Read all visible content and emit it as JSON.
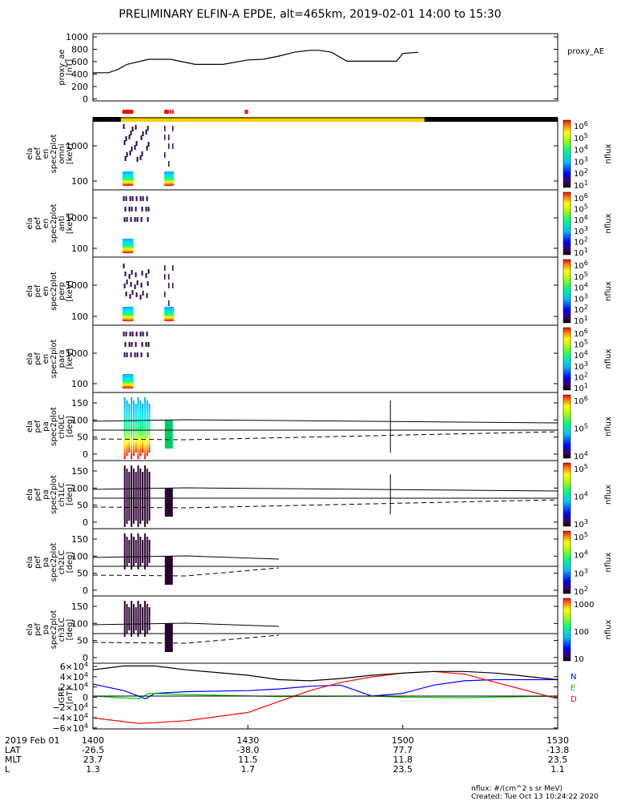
{
  "title": "PRELIMINARY ELFIN-A EPDE, alt=465km, 2019-02-01 14:00 to 15:30",
  "footer": {
    "units": "nflux: #/(cm^2 s sr MeV)",
    "created": "Created: Tue Oct 13 10:24:22 2020"
  },
  "colors": {
    "axis": "#000000",
    "science_bar": "#ff0000",
    "orbit_bar_day": "#f2d000",
    "orbit_bar_night": "#000000",
    "bx": "#0000ff",
    "by": "#00cc00",
    "bz": "#ff0000",
    "btot": "#000000"
  },
  "chart_data": {
    "type": "line",
    "time_range": [
      "14:00",
      "15:30"
    ],
    "x_ticks": [
      "1400",
      "1430",
      "1500",
      "1530"
    ],
    "ephemeris": {
      "header": "2019 Feb 01",
      "rows": [
        {
          "label": "LAT",
          "values": [
            "-26.5",
            "-38.0",
            "77.7",
            "-13.8"
          ]
        },
        {
          "label": "MLT",
          "values": [
            "23.7",
            "11.5",
            "11.8",
            "23.5"
          ]
        },
        {
          "label": "L",
          "values": [
            "1.3",
            "1.7",
            "23.5",
            "1.1"
          ]
        }
      ]
    },
    "bars": {
      "science_segments": [
        [
          14.095,
          14.13
        ],
        [
          14.23,
          14.245
        ],
        [
          14.247,
          14.252
        ],
        [
          14.255,
          14.26
        ],
        [
          14.49,
          14.492
        ],
        [
          14.495,
          14.497
        ]
      ],
      "sunlit_segments": [
        [
          14.09,
          15.07
        ]
      ]
    },
    "panels": [
      {
        "id": "proxy_ae",
        "ylabel": [
          "proxy_ae",
          "[nT]"
        ],
        "legend": "proxy_AE",
        "yticks": [
          "1000",
          "800",
          "600",
          "400",
          "200",
          "0"
        ],
        "ylim": [
          0,
          1050
        ],
        "series": [
          {
            "x": [
              14.0,
              14.05,
              14.08,
              14.11,
              14.18,
              14.25,
              14.33,
              14.42,
              14.5,
              14.55,
              14.6,
              14.65,
              14.7,
              14.73,
              14.77,
              14.82,
              14.9,
              14.98,
              15.0,
              15.05
            ],
            "y": [
              440,
              440,
              490,
              570,
              650,
              650,
              570,
              570,
              640,
              650,
              700,
              760,
              790,
              790,
              760,
              620,
              620,
              620,
              740,
              760
            ]
          }
        ]
      },
      {
        "id": "en_omni",
        "ylabel": [
          "ela",
          "pef",
          "en",
          "spec2plot",
          "omni",
          "[keV]"
        ],
        "yticks": [
          "1000",
          "100"
        ],
        "cbar": {
          "label": "nflux",
          "ticks": [
            "10^6",
            "10^5",
            "10^4",
            "10^3",
            "10^2",
            "10^1"
          ]
        }
      },
      {
        "id": "en_anti",
        "ylabel": [
          "ela",
          "pef",
          "en",
          "spec2plot",
          "anti",
          "[keV]"
        ],
        "yticks": [
          "1000",
          "100"
        ],
        "cbar": {
          "label": "nflux",
          "ticks": [
            "10^6",
            "10^5",
            "10^4",
            "10^3",
            "10^2",
            "10^1"
          ]
        }
      },
      {
        "id": "en_perp",
        "ylabel": [
          "ela",
          "pef",
          "en",
          "spec2plot",
          "perp",
          "[keV]"
        ],
        "yticks": [
          "1000",
          "100"
        ],
        "cbar": {
          "label": "nflux",
          "ticks": [
            "10^6",
            "10^5",
            "10^4",
            "10^3",
            "10^2",
            "10^1"
          ]
        }
      },
      {
        "id": "en_para",
        "ylabel": [
          "ela",
          "pef",
          "en",
          "spec2plot",
          "para",
          "[keV]"
        ],
        "yticks": [
          "1000",
          "100"
        ],
        "cbar": {
          "label": "nflux",
          "ticks": [
            "10^6",
            "10^5",
            "10^4",
            "10^3",
            "10^2",
            "10^1"
          ]
        }
      },
      {
        "id": "pa_ch0LC",
        "ylabel": [
          "ela",
          "pef",
          "pa",
          "spec2plot",
          "ch0LC",
          "[deg]"
        ],
        "yticks": [
          "150",
          "100",
          "50",
          "0"
        ],
        "cbar": {
          "label": "nflux",
          "ticks": [
            "10^6",
            "10^5",
            "10^4"
          ]
        }
      },
      {
        "id": "pa_ch1LC",
        "ylabel": [
          "ela",
          "pef",
          "pa",
          "spec2plot",
          "ch1LC",
          "[deg]"
        ],
        "yticks": [
          "150",
          "100",
          "50",
          "0"
        ],
        "cbar": {
          "label": "nflux",
          "ticks": [
            "10^5",
            "10^4",
            "10^3"
          ]
        }
      },
      {
        "id": "pa_ch2LC",
        "ylabel": [
          "ela",
          "pef",
          "pa",
          "spec2plot",
          "ch2LC",
          "[deg]"
        ],
        "yticks": [
          "150",
          "100",
          "50",
          "0"
        ],
        "cbar": {
          "label": "nflux",
          "ticks": [
            "10^5",
            "10^4",
            "10^3",
            "10^2"
          ]
        }
      },
      {
        "id": "pa_ch3LC",
        "ylabel": [
          "ela",
          "pef",
          "pa",
          "spec2plot",
          "ch3LC",
          "[deg]"
        ],
        "yticks": [
          "150",
          "100",
          "50",
          "0"
        ],
        "cbar": {
          "label": "nflux",
          "ticks": [
            "1000",
            "100",
            "10"
          ]
        }
      },
      {
        "id": "igrf",
        "ylabel": [
          "IGRF",
          "[nT]"
        ],
        "yticks": [
          "6×10^4",
          "4×10^4",
          "2×10^4",
          "0",
          "−2×10^4",
          "−4×10^4",
          "−6×10^4"
        ],
        "ylim": [
          -60000,
          60000
        ],
        "legend": [
          "N",
          "E",
          "D"
        ],
        "series": [
          {
            "name": "N",
            "color": "#0000ff",
            "x": [
              14.0,
              14.1,
              14.17,
              14.2,
              14.3,
              14.5,
              14.6,
              14.7,
              14.8,
              14.9,
              15.0,
              15.1,
              15.2,
              15.3,
              15.5
            ],
            "y": [
              22000,
              10000,
              -5000,
              5000,
              8000,
              10000,
              13000,
              18000,
              20000,
              0,
              5000,
              20000,
              28000,
              30000,
              30000
            ]
          },
          {
            "name": "E",
            "color": "#00cc00",
            "x": [
              14.0,
              14.15,
              14.18,
              14.3,
              14.6,
              14.9,
              15.0,
              15.2,
              15.3,
              15.5
            ],
            "y": [
              0,
              -5000,
              5000,
              3000,
              -1000,
              0,
              -2000,
              -3000,
              -2000,
              0
            ]
          },
          {
            "name": "D",
            "color": "#ff0000",
            "x": [
              14.0,
              14.15,
              14.3,
              14.5,
              14.6,
              14.7,
              14.8,
              14.9,
              15.0,
              15.1,
              15.2,
              15.3,
              15.5
            ],
            "y": [
              -40000,
              -50000,
              -45000,
              -30000,
              -10000,
              10000,
              25000,
              35000,
              42000,
              45000,
              40000,
              25000,
              -5000
            ]
          },
          {
            "name": "total",
            "color": "#000000",
            "x": [
              14.0,
              14.1,
              14.2,
              14.3,
              14.5,
              14.6,
              14.7,
              14.8,
              14.9,
              15.0,
              15.1,
              15.2,
              15.3,
              15.5
            ],
            "y": [
              48000,
              55000,
              55000,
              48000,
              38000,
              30000,
              28000,
              32000,
              38000,
              42000,
              45000,
              45000,
              42000,
              30000
            ]
          }
        ]
      }
    ]
  }
}
